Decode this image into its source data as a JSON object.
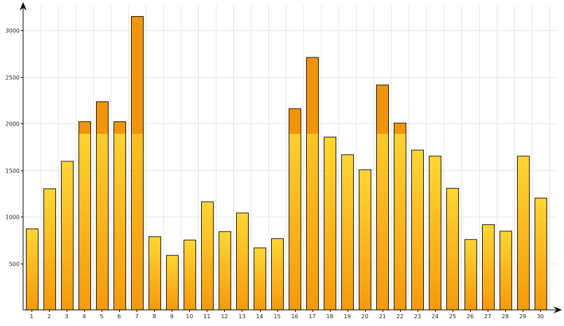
{
  "chart_data": {
    "type": "bar",
    "title": "",
    "xlabel": "",
    "ylabel": "",
    "categories": [
      "1",
      "2",
      "3",
      "4",
      "5",
      "6",
      "7",
      "8",
      "9",
      "10",
      "11",
      "12",
      "13",
      "14",
      "15",
      "16",
      "17",
      "18",
      "19",
      "20",
      "21",
      "22",
      "23",
      "24",
      "25",
      "26",
      "27",
      "28",
      "29",
      "30"
    ],
    "values": [
      870,
      1300,
      1595,
      2020,
      2235,
      2020,
      3150,
      785,
      585,
      750,
      1160,
      840,
      1040,
      665,
      765,
      2160,
      2710,
      1855,
      1665,
      1505,
      2415,
      2005,
      1715,
      1650,
      1305,
      755,
      915,
      845,
      1650,
      1200
    ],
    "threshold": 1890,
    "yticks": [
      500,
      1000,
      1500,
      2000,
      2500,
      3000
    ],
    "ylim": [
      0,
      3300
    ],
    "grid": true,
    "colors": {
      "bar_top": "#ffd633",
      "bar_bottom": "#f59a0c",
      "over_threshold": "#f29407",
      "outline": "#1a1a1a",
      "grid": "#e6e6e6",
      "axis": "#000000"
    }
  }
}
